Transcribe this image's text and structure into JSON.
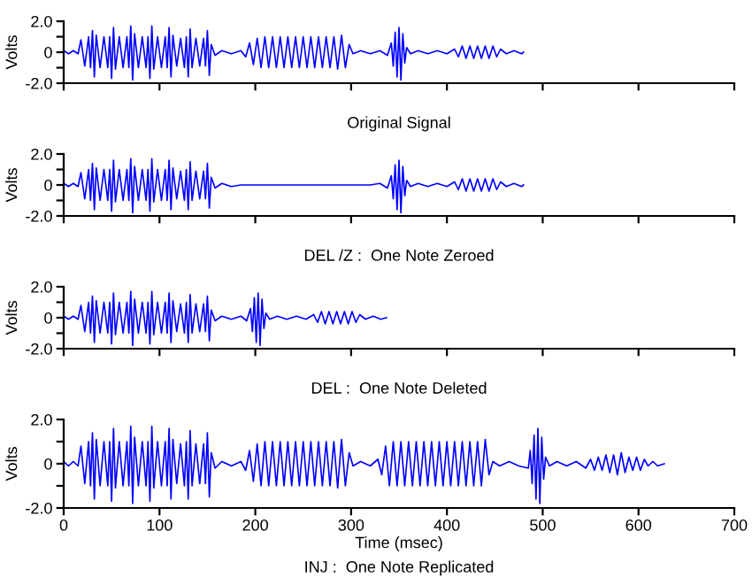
{
  "chart_data": [
    {
      "type": "line",
      "ylabel": "Volts",
      "annotations": [
        "Original Signal"
      ],
      "xlim": [
        0,
        700
      ],
      "xticks": [
        {
          "value": 0,
          "label": null
        },
        {
          "value": 100,
          "label": null
        },
        {
          "value": 200,
          "label": null
        },
        {
          "value": 300,
          "label": null
        },
        {
          "value": 400,
          "label": null
        },
        {
          "value": 500,
          "label": null
        },
        {
          "value": 600,
          "label": null
        },
        {
          "value": 700,
          "label": null
        }
      ],
      "ylim": [
        -2,
        2
      ],
      "yticks": [
        {
          "value": -2,
          "label": "-2.0"
        },
        {
          "value": -1,
          "label": null
        },
        0,
        {
          "value": 1,
          "label": null
        },
        {
          "value": 2,
          "label": "2.0"
        }
      ],
      "tick_labels": "y",
      "grid": false,
      "legend": false,
      "series": [
        {
          "color": "#0000ff",
          "x": [
            0,
            5,
            10,
            15,
            18,
            22,
            26,
            28,
            30,
            32,
            34,
            38,
            42,
            46,
            48,
            50,
            52,
            54,
            58,
            62,
            66,
            68,
            70,
            72,
            74,
            78,
            82,
            86,
            88,
            90,
            92,
            94,
            98,
            102,
            106,
            108,
            110,
            112,
            114,
            118,
            122,
            126,
            128,
            130,
            132,
            134,
            138,
            142,
            146,
            148,
            150,
            152,
            154,
            158,
            165,
            175,
            185,
            190,
            194,
            198,
            202,
            206,
            210,
            214,
            218,
            222,
            226,
            230,
            234,
            238,
            242,
            246,
            250,
            254,
            258,
            262,
            266,
            270,
            274,
            278,
            282,
            286,
            290,
            294,
            298,
            302,
            310,
            320,
            330,
            338,
            342,
            344,
            346,
            348,
            350,
            352,
            354,
            356,
            358,
            362,
            370,
            380,
            390,
            400,
            408,
            412,
            416,
            420,
            424,
            428,
            432,
            436,
            440,
            444,
            448,
            452,
            456,
            462,
            470,
            478,
            480
          ],
          "values": [
            0.1,
            -0.1,
            0.1,
            -0.1,
            0.8,
            -0.9,
            1.0,
            -1.0,
            1.4,
            -1.6,
            1.1,
            -1.0,
            1.0,
            -1.0,
            1.0,
            -1.7,
            1.6,
            -1.1,
            1.0,
            -1.0,
            1.0,
            -1.0,
            1.7,
            -1.8,
            1.2,
            -1.0,
            1.0,
            -1.0,
            1.0,
            -1.7,
            1.7,
            -1.1,
            1.0,
            -1.0,
            1.0,
            -1.0,
            1.6,
            -1.6,
            1.1,
            -0.9,
            0.9,
            -1.0,
            1.0,
            -1.6,
            1.5,
            -1.0,
            0.9,
            -0.9,
            0.9,
            -0.9,
            1.4,
            -1.5,
            0.5,
            -0.2,
            0.1,
            -0.1,
            0.1,
            -0.3,
            0.6,
            -0.8,
            0.9,
            -1.0,
            1.0,
            -1.0,
            1.0,
            -1.0,
            1.0,
            -1.0,
            1.0,
            -1.0,
            1.0,
            -1.0,
            1.0,
            -1.0,
            1.0,
            -1.0,
            1.0,
            -1.0,
            1.0,
            -1.0,
            1.0,
            -1.1,
            1.1,
            -1.0,
            0.5,
            -0.1,
            0.1,
            -0.1,
            0.1,
            -0.2,
            0.6,
            -0.9,
            1.3,
            -1.6,
            1.6,
            -1.8,
            1.2,
            -0.7,
            0.3,
            -0.1,
            0.1,
            -0.1,
            0.1,
            -0.1,
            0.2,
            -0.3,
            0.4,
            -0.4,
            0.4,
            -0.4,
            0.4,
            -0.4,
            0.4,
            -0.4,
            0.4,
            -0.3,
            0.2,
            -0.1,
            0.1,
            -0.1,
            0
          ]
        }
      ]
    },
    {
      "type": "line",
      "ylabel": "Volts",
      "annotations": [
        "DEL /Z :  One Note Zeroed"
      ],
      "xlim": [
        0,
        700
      ],
      "xticks": [
        {
          "value": 0,
          "label": null
        },
        {
          "value": 100,
          "label": null
        },
        {
          "value": 200,
          "label": null
        },
        {
          "value": 300,
          "label": null
        },
        {
          "value": 400,
          "label": null
        },
        {
          "value": 500,
          "label": null
        },
        {
          "value": 600,
          "label": null
        },
        {
          "value": 700,
          "label": null
        }
      ],
      "ylim": [
        -2,
        2
      ],
      "yticks": [
        {
          "value": -2,
          "label": "-2.0"
        },
        {
          "value": -1,
          "label": null
        },
        0,
        {
          "value": 1,
          "label": null
        },
        {
          "value": 2,
          "label": "2.0"
        }
      ],
      "tick_labels": "y",
      "grid": false,
      "legend": false,
      "series": [
        {
          "color": "#0000ff",
          "x": [
            0,
            5,
            10,
            15,
            18,
            22,
            26,
            28,
            30,
            32,
            34,
            38,
            42,
            46,
            48,
            50,
            52,
            54,
            58,
            62,
            66,
            68,
            70,
            72,
            74,
            78,
            82,
            86,
            88,
            90,
            92,
            94,
            98,
            102,
            106,
            108,
            110,
            112,
            114,
            118,
            122,
            126,
            128,
            130,
            132,
            134,
            138,
            142,
            146,
            148,
            150,
            152,
            154,
            158,
            165,
            175,
            185,
            320,
            330,
            338,
            342,
            344,
            346,
            348,
            350,
            352,
            354,
            356,
            358,
            362,
            370,
            380,
            390,
            400,
            408,
            412,
            416,
            420,
            424,
            428,
            432,
            436,
            440,
            444,
            448,
            452,
            456,
            462,
            470,
            478,
            480
          ],
          "values": [
            0.1,
            -0.1,
            0.1,
            -0.1,
            0.8,
            -0.9,
            1.0,
            -1.0,
            1.4,
            -1.6,
            1.1,
            -1.0,
            1.0,
            -1.0,
            1.0,
            -1.7,
            1.6,
            -1.1,
            1.0,
            -1.0,
            1.0,
            -1.0,
            1.7,
            -1.8,
            1.2,
            -1.0,
            1.0,
            -1.0,
            1.0,
            -1.7,
            1.7,
            -1.1,
            1.0,
            -1.0,
            1.0,
            -1.0,
            1.6,
            -1.6,
            1.1,
            -0.9,
            0.9,
            -1.0,
            1.0,
            -1.6,
            1.5,
            -1.0,
            0.9,
            -0.9,
            0.9,
            -0.9,
            1.4,
            -1.5,
            0.5,
            -0.2,
            0.1,
            -0.1,
            0,
            0,
            0.1,
            -0.2,
            0.6,
            -0.9,
            1.3,
            -1.6,
            1.6,
            -1.8,
            1.2,
            -0.7,
            0.3,
            -0.1,
            0.1,
            -0.1,
            0.1,
            -0.1,
            0.2,
            -0.3,
            0.4,
            -0.4,
            0.4,
            -0.4,
            0.4,
            -0.4,
            0.4,
            -0.4,
            0.4,
            -0.3,
            0.2,
            -0.1,
            0.1,
            -0.1,
            0
          ]
        }
      ]
    },
    {
      "type": "line",
      "ylabel": "Volts",
      "annotations": [
        "DEL :  One Note Deleted"
      ],
      "xlim": [
        0,
        700
      ],
      "xticks": [
        {
          "value": 0,
          "label": null
        },
        {
          "value": 100,
          "label": null
        },
        {
          "value": 200,
          "label": null
        },
        {
          "value": 300,
          "label": null
        },
        {
          "value": 400,
          "label": null
        },
        {
          "value": 500,
          "label": null
        },
        {
          "value": 600,
          "label": null
        },
        {
          "value": 700,
          "label": null
        }
      ],
      "ylim": [
        -2,
        2
      ],
      "yticks": [
        {
          "value": -2,
          "label": "-2.0"
        },
        {
          "value": -1,
          "label": null
        },
        0,
        {
          "value": 1,
          "label": null
        },
        {
          "value": 2,
          "label": "2.0"
        }
      ],
      "tick_labels": "y",
      "grid": false,
      "legend": false,
      "series": [
        {
          "color": "#0000ff",
          "x": [
            0,
            5,
            10,
            15,
            18,
            22,
            26,
            28,
            30,
            32,
            34,
            38,
            42,
            46,
            48,
            50,
            52,
            54,
            58,
            62,
            66,
            68,
            70,
            72,
            74,
            78,
            82,
            86,
            88,
            90,
            92,
            94,
            98,
            102,
            106,
            108,
            110,
            112,
            114,
            118,
            122,
            126,
            128,
            130,
            132,
            134,
            138,
            142,
            146,
            148,
            150,
            152,
            154,
            158,
            165,
            175,
            185,
            191,
            195,
            197,
            199,
            201,
            203,
            205,
            207,
            209,
            211,
            215,
            223,
            233,
            243,
            253,
            261,
            265,
            269,
            273,
            277,
            281,
            285,
            289,
            293,
            297,
            301,
            305,
            309,
            315,
            323,
            331,
            337
          ],
          "values": [
            0.1,
            -0.1,
            0.1,
            -0.1,
            0.8,
            -0.9,
            1.0,
            -1.0,
            1.4,
            -1.6,
            1.1,
            -1.0,
            1.0,
            -1.0,
            1.0,
            -1.7,
            1.6,
            -1.1,
            1.0,
            -1.0,
            1.0,
            -1.0,
            1.7,
            -1.8,
            1.2,
            -1.0,
            1.0,
            -1.0,
            1.0,
            -1.7,
            1.7,
            -1.1,
            1.0,
            -1.0,
            1.0,
            -1.0,
            1.6,
            -1.6,
            1.1,
            -0.9,
            0.9,
            -1.0,
            1.0,
            -1.6,
            1.5,
            -1.0,
            0.9,
            -0.9,
            0.9,
            -0.9,
            1.4,
            -1.5,
            0.5,
            -0.2,
            0.1,
            -0.1,
            0.1,
            -0.2,
            0.6,
            -0.9,
            1.3,
            -1.6,
            1.6,
            -1.8,
            1.2,
            -0.7,
            0.3,
            -0.1,
            0.1,
            -0.1,
            0.1,
            -0.1,
            0.2,
            -0.3,
            0.4,
            -0.4,
            0.4,
            -0.4,
            0.4,
            -0.4,
            0.4,
            -0.4,
            0.4,
            -0.3,
            0.2,
            -0.1,
            0.1,
            -0.1,
            0
          ]
        }
      ]
    },
    {
      "type": "line",
      "ylabel": "Volts",
      "xlabel": "Time (msec)",
      "annotations": [
        "INJ :  One Note Replicated"
      ],
      "xlim": [
        0,
        700
      ],
      "xticks": [
        0,
        100,
        200,
        300,
        400,
        500,
        600,
        700
      ],
      "ylim": [
        -2,
        2
      ],
      "yticks": [
        {
          "value": -2,
          "label": "-2.0"
        },
        {
          "value": -1,
          "label": null
        },
        0,
        {
          "value": 1,
          "label": null
        },
        {
          "value": 2,
          "label": "2.0"
        }
      ],
      "grid": false,
      "legend": false,
      "series": [
        {
          "color": "#0000ff",
          "x": [
            0,
            5,
            10,
            15,
            18,
            22,
            26,
            28,
            30,
            32,
            34,
            38,
            42,
            46,
            48,
            50,
            52,
            54,
            58,
            62,
            66,
            68,
            70,
            72,
            74,
            78,
            82,
            86,
            88,
            90,
            92,
            94,
            98,
            102,
            106,
            108,
            110,
            112,
            114,
            118,
            122,
            126,
            128,
            130,
            132,
            134,
            138,
            142,
            146,
            148,
            150,
            152,
            154,
            158,
            165,
            175,
            185,
            190,
            194,
            198,
            202,
            206,
            210,
            214,
            218,
            222,
            226,
            230,
            234,
            238,
            242,
            246,
            250,
            254,
            258,
            262,
            266,
            270,
            274,
            278,
            282,
            286,
            290,
            294,
            298,
            302,
            310,
            320,
            328,
            332,
            336,
            340,
            344,
            348,
            352,
            356,
            360,
            364,
            368,
            372,
            376,
            380,
            384,
            388,
            392,
            396,
            400,
            404,
            408,
            412,
            416,
            420,
            424,
            428,
            432,
            436,
            440,
            444,
            448,
            455,
            465,
            475,
            485,
            487,
            489,
            491,
            493,
            495,
            497,
            499,
            501,
            503,
            507,
            515,
            525,
            535,
            545,
            550,
            554,
            558,
            562,
            566,
            570,
            574,
            578,
            582,
            586,
            590,
            594,
            598,
            602,
            606,
            610,
            615,
            620,
            627
          ],
          "values": [
            0.1,
            -0.1,
            0.1,
            -0.1,
            0.8,
            -0.9,
            1.0,
            -1.0,
            1.4,
            -1.6,
            1.1,
            -1.0,
            1.0,
            -1.0,
            1.0,
            -1.7,
            1.6,
            -1.1,
            1.0,
            -1.0,
            1.0,
            -1.0,
            1.7,
            -1.8,
            1.2,
            -1.0,
            1.0,
            -1.0,
            1.0,
            -1.7,
            1.7,
            -1.1,
            1.0,
            -1.0,
            1.0,
            -1.0,
            1.6,
            -1.6,
            1.1,
            -0.9,
            0.9,
            -1.0,
            1.0,
            -1.6,
            1.5,
            -1.0,
            0.9,
            -0.9,
            0.9,
            -0.9,
            1.4,
            -1.5,
            0.5,
            -0.2,
            0.1,
            -0.1,
            0.1,
            -0.3,
            0.6,
            -0.8,
            0.9,
            -1.0,
            1.0,
            -1.0,
            1.0,
            -1.0,
            1.0,
            -1.0,
            1.0,
            -1.0,
            1.0,
            -1.0,
            1.0,
            -1.0,
            1.0,
            -1.0,
            1.0,
            -1.0,
            1.0,
            -1.0,
            1.0,
            -1.1,
            1.1,
            -1.0,
            0.5,
            -0.1,
            0.1,
            -0.1,
            0.2,
            -0.5,
            0.8,
            -1.0,
            1.0,
            -1.0,
            1.0,
            -1.0,
            1.0,
            -1.0,
            1.0,
            -1.0,
            1.0,
            -1.0,
            1.0,
            -1.0,
            1.0,
            -1.0,
            1.0,
            -1.0,
            1.0,
            -1.0,
            1.0,
            -1.0,
            1.0,
            -1.0,
            1.0,
            -1.0,
            1.1,
            -0.5,
            0.1,
            -0.1,
            0.1,
            -0.1,
            -0.2,
            0.6,
            -0.9,
            1.3,
            -1.6,
            1.6,
            -1.8,
            1.2,
            -0.7,
            0.3,
            -0.1,
            0.1,
            -0.1,
            0.1,
            -0.2,
            0.2,
            -0.3,
            0.3,
            -0.3,
            0.4,
            -0.4,
            0.4,
            -0.5,
            0.5,
            -0.4,
            0.3,
            -0.3,
            0.3,
            -0.3,
            0.2,
            -0.1,
            0.1,
            -0.1,
            0
          ]
        }
      ]
    }
  ]
}
